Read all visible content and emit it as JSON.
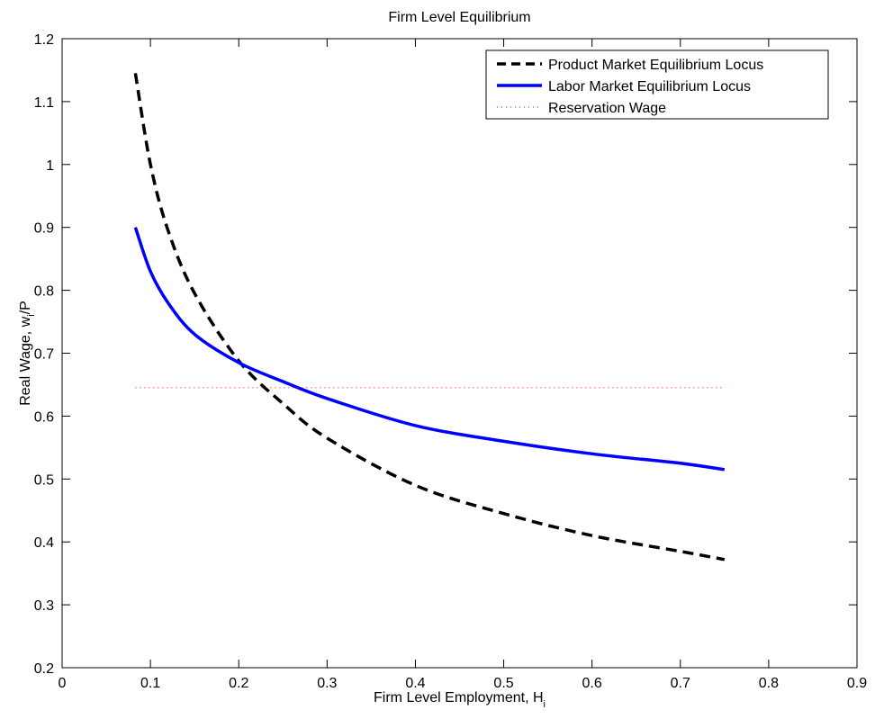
{
  "chart_data": {
    "type": "line",
    "title": "Firm Level Equilibrium",
    "xlabel": "Firm Level Employment, H",
    "xlabel_sub": "i",
    "ylabel": "Real Wage, w",
    "ylabel_sub": "i",
    "ylabel_suffix": "/P",
    "xlim": [
      0,
      0.9
    ],
    "ylim": [
      0.2,
      1.2
    ],
    "xticks": [
      0,
      0.1,
      0.2,
      0.3,
      0.4,
      0.5,
      0.6,
      0.7,
      0.8,
      0.9
    ],
    "xtick_labels": [
      "0",
      "0.1",
      "0.2",
      "0.3",
      "0.4",
      "0.5",
      "0.6",
      "0.7",
      "0.8",
      "0.9"
    ],
    "yticks": [
      0.2,
      0.3,
      0.4,
      0.5,
      0.6,
      0.7,
      0.8,
      0.9,
      1.0,
      1.1,
      1.2
    ],
    "ytick_labels": [
      "0.2",
      "0.3",
      "0.4",
      "0.5",
      "0.6",
      "0.7",
      "0.8",
      "0.9",
      "1",
      "1.1",
      "1.2"
    ],
    "grid": false,
    "legend_position": "top-right",
    "series": [
      {
        "name": "Product Market Equilibrium Locus",
        "color": "#000000",
        "style": "dashed",
        "x": [
          0.083,
          0.1,
          0.12,
          0.15,
          0.2,
          0.25,
          0.3,
          0.4,
          0.5,
          0.6,
          0.7,
          0.75
        ],
        "y": [
          1.145,
          1.0,
          0.895,
          0.795,
          0.688,
          0.62,
          0.565,
          0.49,
          0.445,
          0.41,
          0.385,
          0.372
        ]
      },
      {
        "name": "Labor Market Equilibrium Locus",
        "color": "#0000ff",
        "style": "solid",
        "x": [
          0.083,
          0.1,
          0.12,
          0.15,
          0.2,
          0.25,
          0.3,
          0.4,
          0.5,
          0.6,
          0.7,
          0.75
        ],
        "y": [
          0.9,
          0.83,
          0.78,
          0.73,
          0.685,
          0.655,
          0.628,
          0.585,
          0.56,
          0.54,
          0.525,
          0.515
        ]
      },
      {
        "name": "Reservation Wage",
        "color": "#ff0000",
        "style": "dotted",
        "x": [
          0.083,
          0.75
        ],
        "y": [
          0.645,
          0.645
        ]
      }
    ]
  }
}
